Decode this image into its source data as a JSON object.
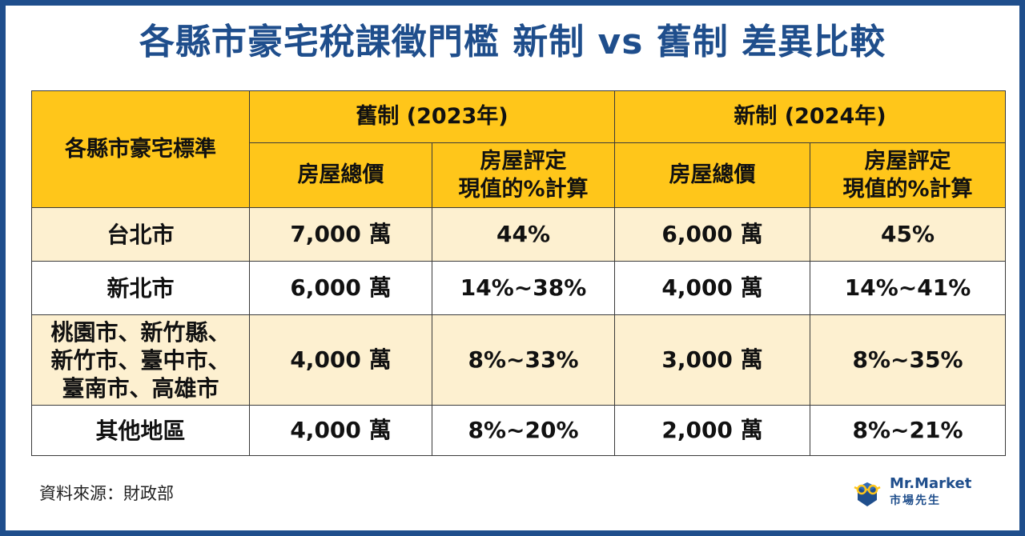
{
  "title": "各縣市豪宅稅課徵門檻 新制 vs 舊制 差異比較",
  "table": {
    "header_category": "各縣市豪宅標準",
    "groups": [
      {
        "label": "舊制 (2023年)",
        "col_total": "房屋總價",
        "col_percent_line1": "房屋評定",
        "col_percent_line2": "現值的%計算"
      },
      {
        "label": "新制 (2024年)",
        "col_total": "房屋總價",
        "col_percent_line1": "房屋評定",
        "col_percent_line2": "現值的%計算"
      }
    ],
    "rows": [
      {
        "city_lines": [
          "台北市"
        ],
        "old_total": "7,000 萬",
        "old_percent": "44%",
        "new_total": "6,000 萬",
        "new_percent": "45%"
      },
      {
        "city_lines": [
          "新北市"
        ],
        "old_total": "6,000 萬",
        "old_percent": "14%~38%",
        "new_total": "4,000 萬",
        "new_percent": "14%~41%"
      },
      {
        "city_lines": [
          "桃園市、新竹縣、",
          "新竹市、臺中市、",
          "臺南市、高雄市"
        ],
        "old_total": "4,000 萬",
        "old_percent": "8%~33%",
        "new_total": "3,000 萬",
        "new_percent": "8%~35%"
      },
      {
        "city_lines": [
          "其他地區"
        ],
        "old_total": "4,000 萬",
        "old_percent": "8%~20%",
        "new_total": "2,000 萬",
        "new_percent": "8%~21%"
      }
    ]
  },
  "source": "資料來源：財政部",
  "logo": {
    "name_en": "Mr.Market",
    "name_zh": "市場先生",
    "icon": "glasses-mascot-icon"
  },
  "colors": {
    "brand_blue": "#1f4e8c",
    "header_yellow": "#ffc61a",
    "row_cream": "#fdf0d0"
  }
}
